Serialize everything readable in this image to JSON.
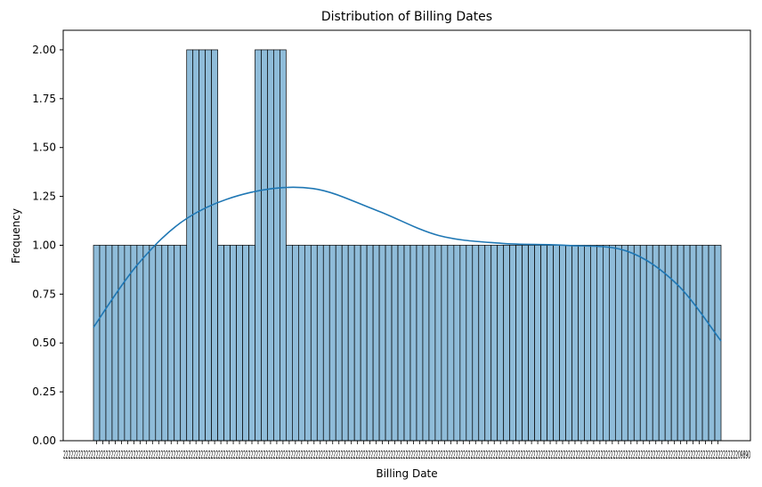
{
  "chart_data": {
    "type": "bar",
    "title": "Distribution of Billing Dates",
    "xlabel": "Billing Date",
    "ylabel": "Frequency",
    "ylim": [
      0,
      2.1
    ],
    "yticks": [
      "0.00",
      "0.25",
      "0.50",
      "0.75",
      "1.00",
      "1.25",
      "1.50",
      "1.75",
      "2.00"
    ],
    "bar_color": "#8fbcd9",
    "bar_edge_color": "#000000",
    "kde_color": "#1f77b4",
    "grid": false,
    "legend": "none",
    "values": [
      1,
      1,
      1,
      1,
      1,
      1,
      1,
      1,
      1,
      1,
      1,
      1,
      1,
      1,
      1,
      2,
      2,
      2,
      2,
      2,
      1,
      1,
      1,
      1,
      1,
      1,
      2,
      2,
      2,
      2,
      2,
      1,
      1,
      1,
      1,
      1,
      1,
      1,
      1,
      1,
      1,
      1,
      1,
      1,
      1,
      1,
      1,
      1,
      1,
      1,
      1,
      1,
      1,
      1,
      1,
      1,
      1,
      1,
      1,
      1,
      1,
      1,
      1,
      1,
      1,
      1,
      1,
      1,
      1,
      1,
      1,
      1,
      1,
      1,
      1,
      1,
      1,
      1,
      1,
      1,
      1,
      1,
      1,
      1,
      1,
      1,
      1,
      1,
      1,
      1,
      1,
      1,
      1,
      1,
      1,
      1,
      1,
      1,
      1,
      1,
      1
    ],
    "kde": {
      "x": [
        0,
        0.07,
        0.15,
        0.25,
        0.35,
        0.45,
        0.55,
        0.65,
        0.75,
        0.85,
        0.93,
        1.0
      ],
      "y": [
        0.58,
        0.9,
        1.14,
        1.27,
        1.29,
        1.18,
        1.05,
        1.01,
        1.0,
        0.97,
        0.8,
        0.51
      ]
    },
    "xtick_label_fragments": [
      "2",
      "2",
      "2",
      "2",
      "2",
      "2",
      "2",
      "2",
      "2",
      "0",
      "9",
      "8",
      "9",
      "0"
    ]
  }
}
